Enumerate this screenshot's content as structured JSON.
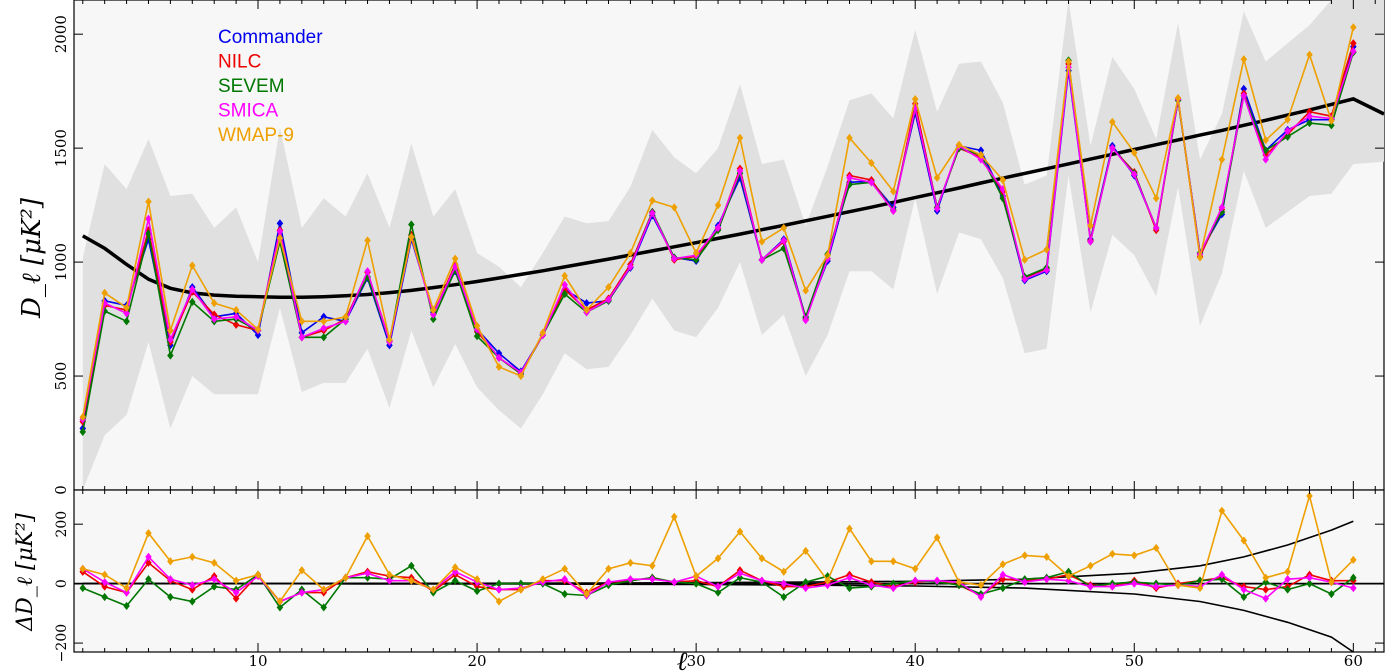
{
  "chart_data": [
    {
      "type": "line",
      "panel": "main",
      "ylabel": "D_ℓ [μK²]",
      "xlim": [
        1.6,
        61.4
      ],
      "ylim": [
        0,
        2150
      ],
      "xticks": [
        "10",
        "20",
        "30",
        "40",
        "50",
        "60"
      ],
      "yticks": [
        "0",
        "500",
        "1000",
        "1500",
        "2000"
      ],
      "grid": false,
      "legend_placement": "top-left",
      "x": [
        2,
        3,
        4,
        5,
        6,
        7,
        8,
        9,
        10,
        11,
        12,
        13,
        14,
        15,
        16,
        17,
        18,
        19,
        20,
        21,
        22,
        23,
        24,
        25,
        26,
        27,
        28,
        29,
        30,
        31,
        32,
        33,
        34,
        35,
        36,
        37,
        38,
        39,
        40,
        41,
        42,
        43,
        44,
        45,
        46,
        47,
        48,
        49,
        50,
        51,
        52,
        53,
        54,
        55,
        56,
        57,
        58,
        59,
        60
      ],
      "series": [
        {
          "name": "Commander",
          "color": "#0000ee",
          "values": [
            270,
            830,
            810,
            1100,
            635,
            890,
            760,
            775,
            680,
            1170,
            690,
            760,
            740,
            930,
            635,
            1100,
            780,
            960,
            705,
            600,
            520,
            680,
            880,
            820,
            830,
            975,
            1205,
            1020,
            1005,
            1160,
            1370,
            1010,
            1100,
            755,
            1005,
            1350,
            1355,
            1240,
            1655,
            1225,
            1510,
            1490,
            1290,
            920,
            960,
            1840,
            1100,
            1510,
            1380,
            1150,
            1710,
            1040,
            1210,
            1760,
            1490,
            1580,
            1625,
            1625,
            1945
          ]
        },
        {
          "name": "NILC",
          "color": "#ee0000",
          "values": [
            300,
            810,
            790,
            1140,
            650,
            870,
            770,
            725,
            700,
            1140,
            670,
            700,
            750,
            955,
            655,
            1120,
            770,
            990,
            695,
            580,
            510,
            680,
            880,
            790,
            840,
            990,
            1220,
            1010,
            1025,
            1145,
            1410,
            1010,
            1090,
            750,
            1015,
            1380,
            1360,
            1225,
            1695,
            1240,
            1500,
            1460,
            1310,
            930,
            970,
            1870,
            1095,
            1500,
            1395,
            1140,
            1715,
            1025,
            1230,
            1740,
            1470,
            1560,
            1660,
            1640,
            1960
          ]
        },
        {
          "name": "SEVEM",
          "color": "#007700",
          "values": [
            255,
            785,
            740,
            1125,
            590,
            825,
            740,
            750,
            700,
            1090,
            670,
            670,
            750,
            935,
            650,
            1165,
            750,
            965,
            675,
            580,
            510,
            680,
            860,
            780,
            830,
            980,
            1220,
            1020,
            1010,
            1140,
            1390,
            1010,
            1060,
            760,
            1035,
            1340,
            1350,
            1230,
            1670,
            1240,
            1500,
            1470,
            1280,
            935,
            975,
            1885,
            1090,
            1500,
            1390,
            1150,
            1710,
            1040,
            1220,
            1730,
            1490,
            1550,
            1610,
            1600,
            1920
          ]
        },
        {
          "name": "SMICA",
          "color": "#ff00ff",
          "values": [
            310,
            820,
            775,
            1190,
            660,
            880,
            750,
            760,
            700,
            1135,
            670,
            710,
            740,
            960,
            650,
            1110,
            770,
            980,
            705,
            580,
            515,
            680,
            900,
            780,
            835,
            980,
            1215,
            1015,
            1030,
            1150,
            1400,
            1010,
            1095,
            745,
            1015,
            1370,
            1350,
            1225,
            1675,
            1235,
            1510,
            1450,
            1320,
            925,
            965,
            1855,
            1090,
            1500,
            1385,
            1150,
            1715,
            1035,
            1240,
            1730,
            1450,
            1575,
            1640,
            1630,
            1925
          ]
        },
        {
          "name": "WMAP-9",
          "color": "#eea000",
          "values": [
            320,
            865,
            800,
            1265,
            700,
            985,
            820,
            790,
            705,
            1105,
            740,
            740,
            760,
            1095,
            660,
            1110,
            790,
            1015,
            720,
            540,
            500,
            690,
            940,
            790,
            890,
            1040,
            1270,
            1240,
            1040,
            1250,
            1545,
            1090,
            1150,
            875,
            1030,
            1545,
            1435,
            1310,
            1715,
            1370,
            1515,
            1470,
            1360,
            1010,
            1055,
            1880,
            1160,
            1615,
            1480,
            1280,
            1720,
            1020,
            1450,
            1890,
            1535,
            1625,
            1910,
            1620,
            2030
          ]
        }
      ],
      "model_curve": {
        "color": "#000000",
        "x": [
          2,
          3,
          4,
          5,
          6,
          7,
          8,
          9,
          10,
          11,
          12,
          13,
          14,
          15,
          16,
          17,
          18,
          19,
          20,
          21,
          22,
          23,
          24,
          25,
          26,
          27,
          28,
          29,
          30,
          31,
          32,
          33,
          34,
          35,
          36,
          37,
          38,
          39,
          40,
          41,
          42,
          43,
          44,
          45,
          46,
          47,
          48,
          49,
          50,
          51,
          52,
          53,
          54,
          55,
          56,
          57,
          58,
          59,
          60,
          61.4
        ],
        "values": [
          1115,
          1060,
          990,
          925,
          885,
          865,
          855,
          850,
          848,
          846,
          846,
          848,
          852,
          858,
          866,
          876,
          888,
          901,
          915,
          930,
          946,
          962,
          979,
          996,
          1013,
          1031,
          1049,
          1067,
          1085,
          1104,
          1123,
          1142,
          1161,
          1181,
          1201,
          1221,
          1241,
          1262,
          1283,
          1304,
          1325,
          1347,
          1368,
          1389,
          1410,
          1431,
          1452,
          1473,
          1494,
          1515,
          1536,
          1557,
          1578,
          1600,
          1622,
          1645,
          1668,
          1692,
          1716,
          1650
        ]
      },
      "cosmic_variance_band": {
        "color": "#e0e0e0",
        "x": [
          2,
          3,
          4,
          5,
          6,
          7,
          8,
          9,
          10,
          11,
          12,
          13,
          14,
          15,
          16,
          17,
          18,
          19,
          20,
          21,
          22,
          23,
          24,
          25,
          26,
          27,
          28,
          29,
          30,
          31,
          32,
          33,
          34,
          35,
          36,
          37,
          38,
          39,
          40,
          41,
          42,
          43,
          44,
          45,
          46,
          47,
          48,
          49,
          50,
          51,
          52,
          53,
          54,
          55,
          56,
          57,
          58,
          59,
          60,
          61.4
        ],
        "upper": [
          1020,
          1430,
          1320,
          1540,
          1290,
          1300,
          1150,
          1240,
          1000,
          1590,
          1150,
          1280,
          1200,
          1390,
          1150,
          1520,
          1200,
          1320,
          1040,
          980,
          890,
          1040,
          1200,
          1170,
          1180,
          1330,
          1580,
          1460,
          1390,
          1500,
          1780,
          1430,
          1450,
          1160,
          1420,
          1710,
          1740,
          1630,
          2020,
          1660,
          1870,
          1880,
          1700,
          1340,
          1380,
          2250,
          1510,
          1900,
          1760,
          1540,
          2050,
          1450,
          1650,
          2100,
          1880,
          1960,
          2040,
          2150,
          2150,
          2150
        ],
        "lower": [
          0,
          240,
          330,
          650,
          270,
          500,
          420,
          420,
          420,
          800,
          430,
          470,
          470,
          620,
          360,
          700,
          450,
          640,
          450,
          350,
          270,
          420,
          600,
          530,
          540,
          680,
          840,
          700,
          670,
          800,
          1000,
          680,
          770,
          500,
          680,
          960,
          960,
          880,
          1280,
          860,
          1130,
          1100,
          930,
          600,
          620,
          1380,
          780,
          1120,
          1030,
          850,
          1330,
          720,
          950,
          1400,
          1150,
          1220,
          1290,
          1300,
          1430,
          1440
        ]
      }
    },
    {
      "type": "line",
      "panel": "residual",
      "ylabel": "ΔD_ℓ [μK²]",
      "xlabel": "ℓ",
      "xlim": [
        1.6,
        61.4
      ],
      "ylim": [
        -230,
        315
      ],
      "xticks": [
        "10",
        "20",
        "30",
        "40",
        "50",
        "60"
      ],
      "yticks": [
        "−200",
        "0",
        "200"
      ],
      "grid": false,
      "x": [
        2,
        3,
        4,
        5,
        6,
        7,
        8,
        9,
        10,
        11,
        12,
        13,
        14,
        15,
        16,
        17,
        18,
        19,
        20,
        21,
        22,
        23,
        24,
        25,
        26,
        27,
        28,
        29,
        30,
        31,
        32,
        33,
        34,
        35,
        36,
        37,
        38,
        39,
        40,
        41,
        42,
        43,
        44,
        45,
        46,
        47,
        48,
        49,
        50,
        51,
        52,
        53,
        54,
        55,
        56,
        57,
        58,
        59,
        60
      ],
      "series": [
        {
          "name": "NILC",
          "color": "#ee0000",
          "values": [
            40,
            -10,
            -30,
            70,
            10,
            -20,
            25,
            -50,
            30,
            -60,
            -30,
            -30,
            20,
            40,
            25,
            20,
            -25,
            30,
            -10,
            -20,
            -20,
            10,
            10,
            -30,
            5,
            10,
            20,
            5,
            10,
            -10,
            45,
            10,
            -10,
            -10,
            5,
            30,
            5,
            -10,
            5,
            10,
            -5,
            -40,
            15,
            10,
            15,
            30,
            -5,
            -10,
            10,
            -15,
            0,
            10,
            20,
            -10,
            -20,
            -10,
            30,
            10,
            10
          ]
        },
        {
          "name": "SEVEM",
          "color": "#007700",
          "values": [
            -15,
            -45,
            -75,
            15,
            -45,
            -60,
            -10,
            -20,
            30,
            -80,
            -20,
            -80,
            20,
            20,
            15,
            60,
            -30,
            10,
            -25,
            0,
            0,
            0,
            -35,
            -40,
            -5,
            10,
            20,
            5,
            0,
            -30,
            20,
            5,
            -45,
            5,
            25,
            -15,
            -10,
            0,
            10,
            5,
            -5,
            -35,
            -15,
            15,
            20,
            40,
            -10,
            0,
            5,
            0,
            -5,
            10,
            15,
            -45,
            5,
            -20,
            0,
            -35,
            20
          ]
        },
        {
          "name": "SMICA",
          "color": "#ff00ff",
          "values": [
            50,
            5,
            -30,
            90,
            15,
            -5,
            15,
            -30,
            25,
            -60,
            -30,
            -20,
            20,
            35,
            10,
            10,
            -20,
            40,
            5,
            -20,
            -15,
            5,
            15,
            -40,
            5,
            15,
            15,
            5,
            25,
            -10,
            35,
            10,
            0,
            -15,
            -5,
            20,
            -5,
            -15,
            10,
            10,
            5,
            -45,
            30,
            5,
            15,
            10,
            -10,
            -10,
            0,
            -10,
            -5,
            -10,
            30,
            -20,
            -50,
            15,
            20,
            5,
            -15
          ]
        },
        {
          "name": "WMAP-9",
          "color": "#eea000",
          "values": [
            50,
            30,
            -15,
            170,
            75,
            90,
            70,
            10,
            30,
            -60,
            45,
            -20,
            20,
            160,
            30,
            10,
            -20,
            55,
            15,
            -60,
            -20,
            15,
            50,
            -35,
            50,
            70,
            60,
            225,
            25,
            85,
            175,
            85,
            40,
            110,
            10,
            185,
            75,
            75,
            50,
            155,
            5,
            -5,
            65,
            95,
            90,
            25,
            60,
            100,
            95,
            120,
            -5,
            -15,
            245,
            145,
            20,
            40,
            295,
            5,
            80
          ]
        }
      ],
      "zero_line": 0,
      "cosmic_variance_envelope": {
        "color": "#000000",
        "x": [
          2,
          5,
          10,
          15,
          20,
          25,
          30,
          35,
          40,
          45,
          50,
          53,
          55,
          57,
          59,
          60
        ],
        "upper": [
          0,
          0,
          0,
          1,
          1,
          2,
          3,
          5,
          8,
          15,
          35,
          60,
          90,
          130,
          180,
          210
        ],
        "lower": [
          0,
          0,
          0,
          -1,
          -1,
          -2,
          -3,
          -5,
          -8,
          -15,
          -35,
          -60,
          -90,
          -130,
          -180,
          -230
        ]
      }
    }
  ],
  "legend": {
    "items": [
      {
        "label": "Commander",
        "color": "#0000ee"
      },
      {
        "label": "NILC",
        "color": "#ee0000"
      },
      {
        "label": "SEVEM",
        "color": "#007700"
      },
      {
        "label": "SMICA",
        "color": "#ff00ff"
      },
      {
        "label": "WMAP-9",
        "color": "#eea000"
      }
    ]
  },
  "axes_text": {
    "main_ylabel": "D_ℓ [μK²]",
    "residual_ylabel": "ΔD_ℓ [μK²]",
    "xlabel": "ℓ"
  }
}
